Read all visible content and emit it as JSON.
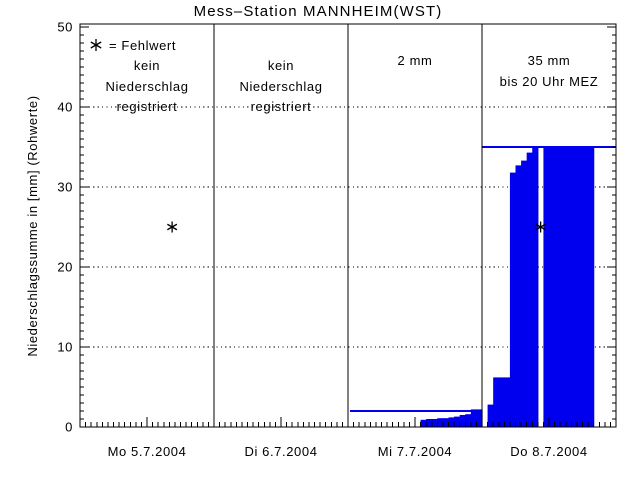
{
  "window": {
    "background": "#ffffff"
  },
  "colors": {
    "bar_blue": "#0000ee",
    "total_line_blue": "#0000ee",
    "axis_black": "#000000",
    "background": "#ffffff"
  },
  "chart_data": {
    "type": "bar",
    "title": "Mess–Station MANNHEIM(WST)",
    "ylabel": "Niederschlagssumme in [mm] (Rohwerte)",
    "xlabel": "",
    "ylim": [
      0,
      50
    ],
    "y_tick_labels": [
      "0",
      "10",
      "20",
      "30",
      "40",
      "50"
    ],
    "y_major_tick_step": 10,
    "y_minor_tick_step": 1,
    "grid": {
      "horizontal_dotted_at": [
        10,
        20,
        30,
        40
      ]
    },
    "hours_per_panel": 24,
    "legend": {
      "marker": "asterisk",
      "text": "= Fehlwert"
    },
    "panels": [
      {
        "day_label": "Mo 5.7.2004",
        "annotation_lines": [
          "kein",
          "Niederschlag",
          "registriert"
        ],
        "has_legend": true,
        "total_line_mm": null,
        "missing_value_marker": {
          "hour": 16.5,
          "mm": 25
        },
        "bars_cumulative_mm": []
      },
      {
        "day_label": "Di 6.7.2004",
        "annotation_lines": [
          "kein",
          "Niederschlag",
          "registriert"
        ],
        "has_legend": false,
        "total_line_mm": null,
        "missing_value_marker": null,
        "bars_cumulative_mm": []
      },
      {
        "day_label": "Mi 7.7.2004",
        "annotation_lines": [
          "2 mm"
        ],
        "has_legend": false,
        "total_line_mm": 2,
        "total_line_hours": [
          0.4,
          23.3
        ],
        "missing_value_marker": null,
        "bars_cumulative_mm": [
          {
            "hour": 13,
            "mm": 0.9
          },
          {
            "hour": 14,
            "mm": 1.0
          },
          {
            "hour": 15,
            "mm": 1.0
          },
          {
            "hour": 16,
            "mm": 1.1
          },
          {
            "hour": 17,
            "mm": 1.1
          },
          {
            "hour": 18,
            "mm": 1.2
          },
          {
            "hour": 19,
            "mm": 1.3
          },
          {
            "hour": 20,
            "mm": 1.5
          },
          {
            "hour": 21,
            "mm": 1.6
          },
          {
            "hour": 22,
            "mm": 2.2
          },
          {
            "hour": 23,
            "mm": 2.2
          }
        ]
      },
      {
        "day_label": "Do 8.7.2004",
        "annotation_lines": [
          "35 mm",
          "bis 20 Uhr MEZ"
        ],
        "has_legend": false,
        "total_line_mm": 35,
        "total_line_hours": [
          0,
          24
        ],
        "missing_value_marker": {
          "hour": 10.5,
          "mm": 25
        },
        "bars_cumulative_mm": [
          {
            "hour": 1,
            "mm": 2.8
          },
          {
            "hour": 2,
            "mm": 6.2
          },
          {
            "hour": 3,
            "mm": 6.2
          },
          {
            "hour": 4,
            "mm": 6.2
          },
          {
            "hour": 5,
            "mm": 31.8
          },
          {
            "hour": 6,
            "mm": 32.7
          },
          {
            "hour": 7,
            "mm": 33.3
          },
          {
            "hour": 8,
            "mm": 34.3
          },
          {
            "hour": 9,
            "mm": 35
          },
          {
            "hour": 11,
            "mm": 35
          },
          {
            "hour": 12,
            "mm": 35
          },
          {
            "hour": 13,
            "mm": 35
          },
          {
            "hour": 14,
            "mm": 35
          },
          {
            "hour": 15,
            "mm": 35
          },
          {
            "hour": 16,
            "mm": 35
          },
          {
            "hour": 17,
            "mm": 35
          },
          {
            "hour": 18,
            "mm": 35
          },
          {
            "hour": 19,
            "mm": 35
          }
        ]
      }
    ]
  }
}
